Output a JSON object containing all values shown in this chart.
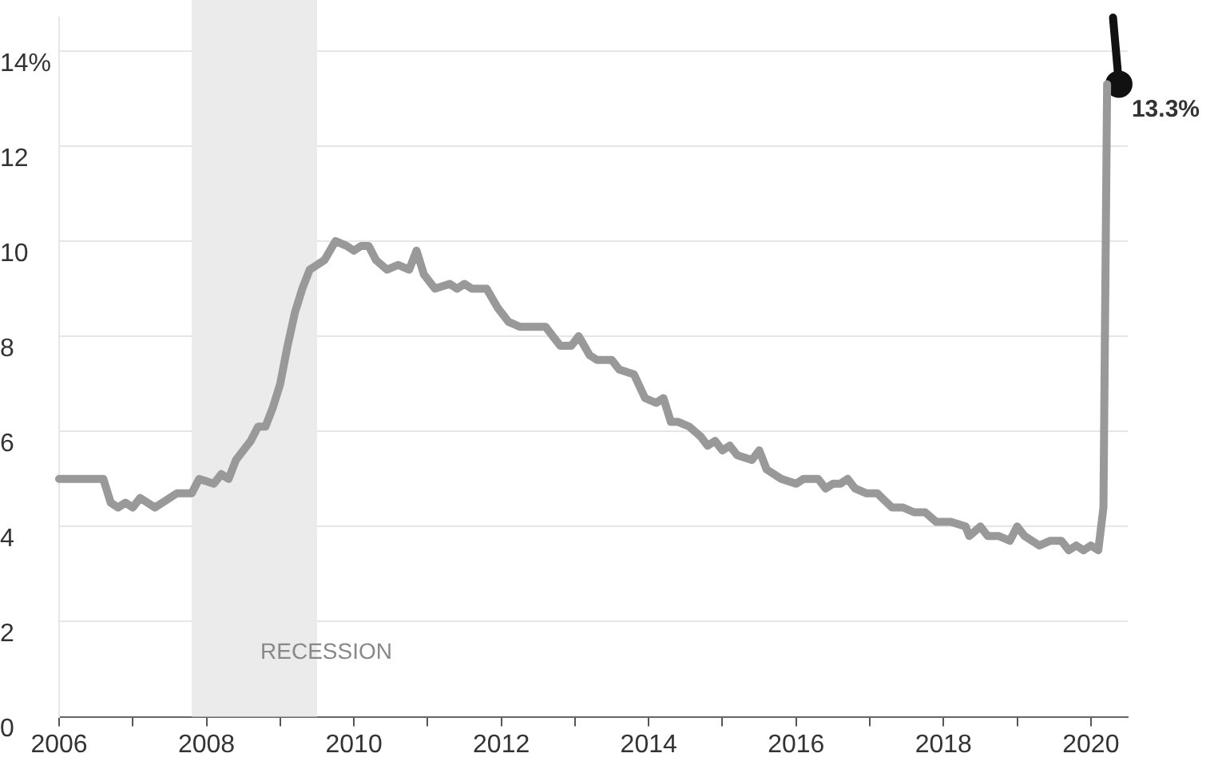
{
  "chart_data": {
    "type": "line",
    "xlim": [
      2006,
      2020.5
    ],
    "ylim": [
      0,
      14.7
    ],
    "xticks": [
      2006,
      {
        "value": 2007,
        "label": null
      },
      2008,
      {
        "value": 2009,
        "label": null
      },
      2010,
      {
        "value": 2011,
        "label": null
      },
      2012,
      {
        "value": 2013,
        "label": null
      },
      2014,
      {
        "value": 2015,
        "label": null
      },
      2016,
      {
        "value": 2017,
        "label": null
      },
      2018,
      {
        "value": 2019,
        "label": null
      },
      2020
    ],
    "yticks": [
      0,
      2,
      4,
      6,
      8,
      10,
      12,
      {
        "value": 14,
        "label": "14%"
      }
    ],
    "grid": "y",
    "legend": false,
    "line_style": "solid",
    "bands": [
      {
        "axis": "x",
        "from": 2007.8,
        "to": 2009.5,
        "label": "RECESSION",
        "color": "#ebebeb"
      }
    ],
    "annotations": [
      {
        "text": "13.3%",
        "x": 2020.38,
        "y": 13.3
      }
    ],
    "series": [
      {
        "color": "#999999",
        "marker": "none",
        "x": [
          2006,
          2006.6,
          2006.7,
          2006.8,
          2006.9,
          2007.0,
          2007.1,
          2007.3,
          2007.5,
          2007.6,
          2007.8,
          2007.9,
          2008.1,
          2008.2,
          2008.3,
          2008.4,
          2008.5,
          2008.6,
          2008.7,
          2008.8,
          2008.9,
          2009.0,
          2009.1,
          2009.2,
          2009.3,
          2009.4,
          2009.5,
          2009.6,
          2009.75,
          2009.9,
          2010.0,
          2010.1,
          2010.2,
          2010.3,
          2010.45,
          2010.6,
          2010.75,
          2010.85,
          2010.95,
          2011.1,
          2011.3,
          2011.4,
          2011.5,
          2011.6,
          2011.8,
          2011.95,
          2012.1,
          2012.25,
          2012.4,
          2012.6,
          2012.7,
          2012.8,
          2012.95,
          2013.05,
          2013.2,
          2013.3,
          2013.5,
          2013.6,
          2013.8,
          2013.95,
          2014.1,
          2014.2,
          2014.3,
          2014.4,
          2014.55,
          2014.7,
          2014.8,
          2014.9,
          2015.0,
          2015.1,
          2015.2,
          2015.4,
          2015.5,
          2015.6,
          2015.8,
          2016.0,
          2016.1,
          2016.3,
          2016.4,
          2016.5,
          2016.6,
          2016.7,
          2016.8,
          2016.95,
          2017.1,
          2017.3,
          2017.45,
          2017.6,
          2017.75,
          2017.9,
          2018.1,
          2018.3,
          2018.35,
          2018.5,
          2018.6,
          2018.75,
          2018.9,
          2019.0,
          2019.1,
          2019.3,
          2019.45,
          2019.6,
          2019.7,
          2019.8,
          2019.9,
          2020.0,
          2020.1,
          2020.17,
          2020.22
        ],
        "values": [
          5.0,
          5.0,
          4.5,
          4.4,
          4.5,
          4.4,
          4.6,
          4.4,
          4.6,
          4.7,
          4.7,
          5.0,
          4.9,
          5.1,
          5.0,
          5.4,
          5.6,
          5.8,
          6.1,
          6.1,
          6.5,
          7.0,
          7.8,
          8.5,
          9.0,
          9.4,
          9.5,
          9.6,
          10.0,
          9.9,
          9.8,
          9.9,
          9.9,
          9.6,
          9.4,
          9.5,
          9.4,
          9.8,
          9.3,
          9.0,
          9.1,
          9.0,
          9.1,
          9.0,
          9.0,
          8.6,
          8.3,
          8.2,
          8.2,
          8.2,
          8.0,
          7.8,
          7.8,
          8.0,
          7.6,
          7.5,
          7.5,
          7.3,
          7.2,
          6.7,
          6.6,
          6.7,
          6.2,
          6.2,
          6.1,
          5.9,
          5.7,
          5.8,
          5.6,
          5.7,
          5.5,
          5.4,
          5.6,
          5.2,
          5.0,
          4.9,
          5.0,
          5.0,
          4.8,
          4.9,
          4.9,
          5.0,
          4.8,
          4.7,
          4.7,
          4.4,
          4.4,
          4.3,
          4.3,
          4.1,
          4.1,
          4.0,
          3.8,
          4.0,
          3.8,
          3.8,
          3.7,
          4.0,
          3.8,
          3.6,
          3.7,
          3.7,
          3.5,
          3.6,
          3.5,
          3.6,
          3.5,
          4.4,
          13.3
        ]
      },
      {
        "color": "#111111",
        "marker": "circle",
        "x": [
          2020.3,
          2020.38
        ],
        "values": [
          14.7,
          13.3
        ]
      }
    ]
  }
}
